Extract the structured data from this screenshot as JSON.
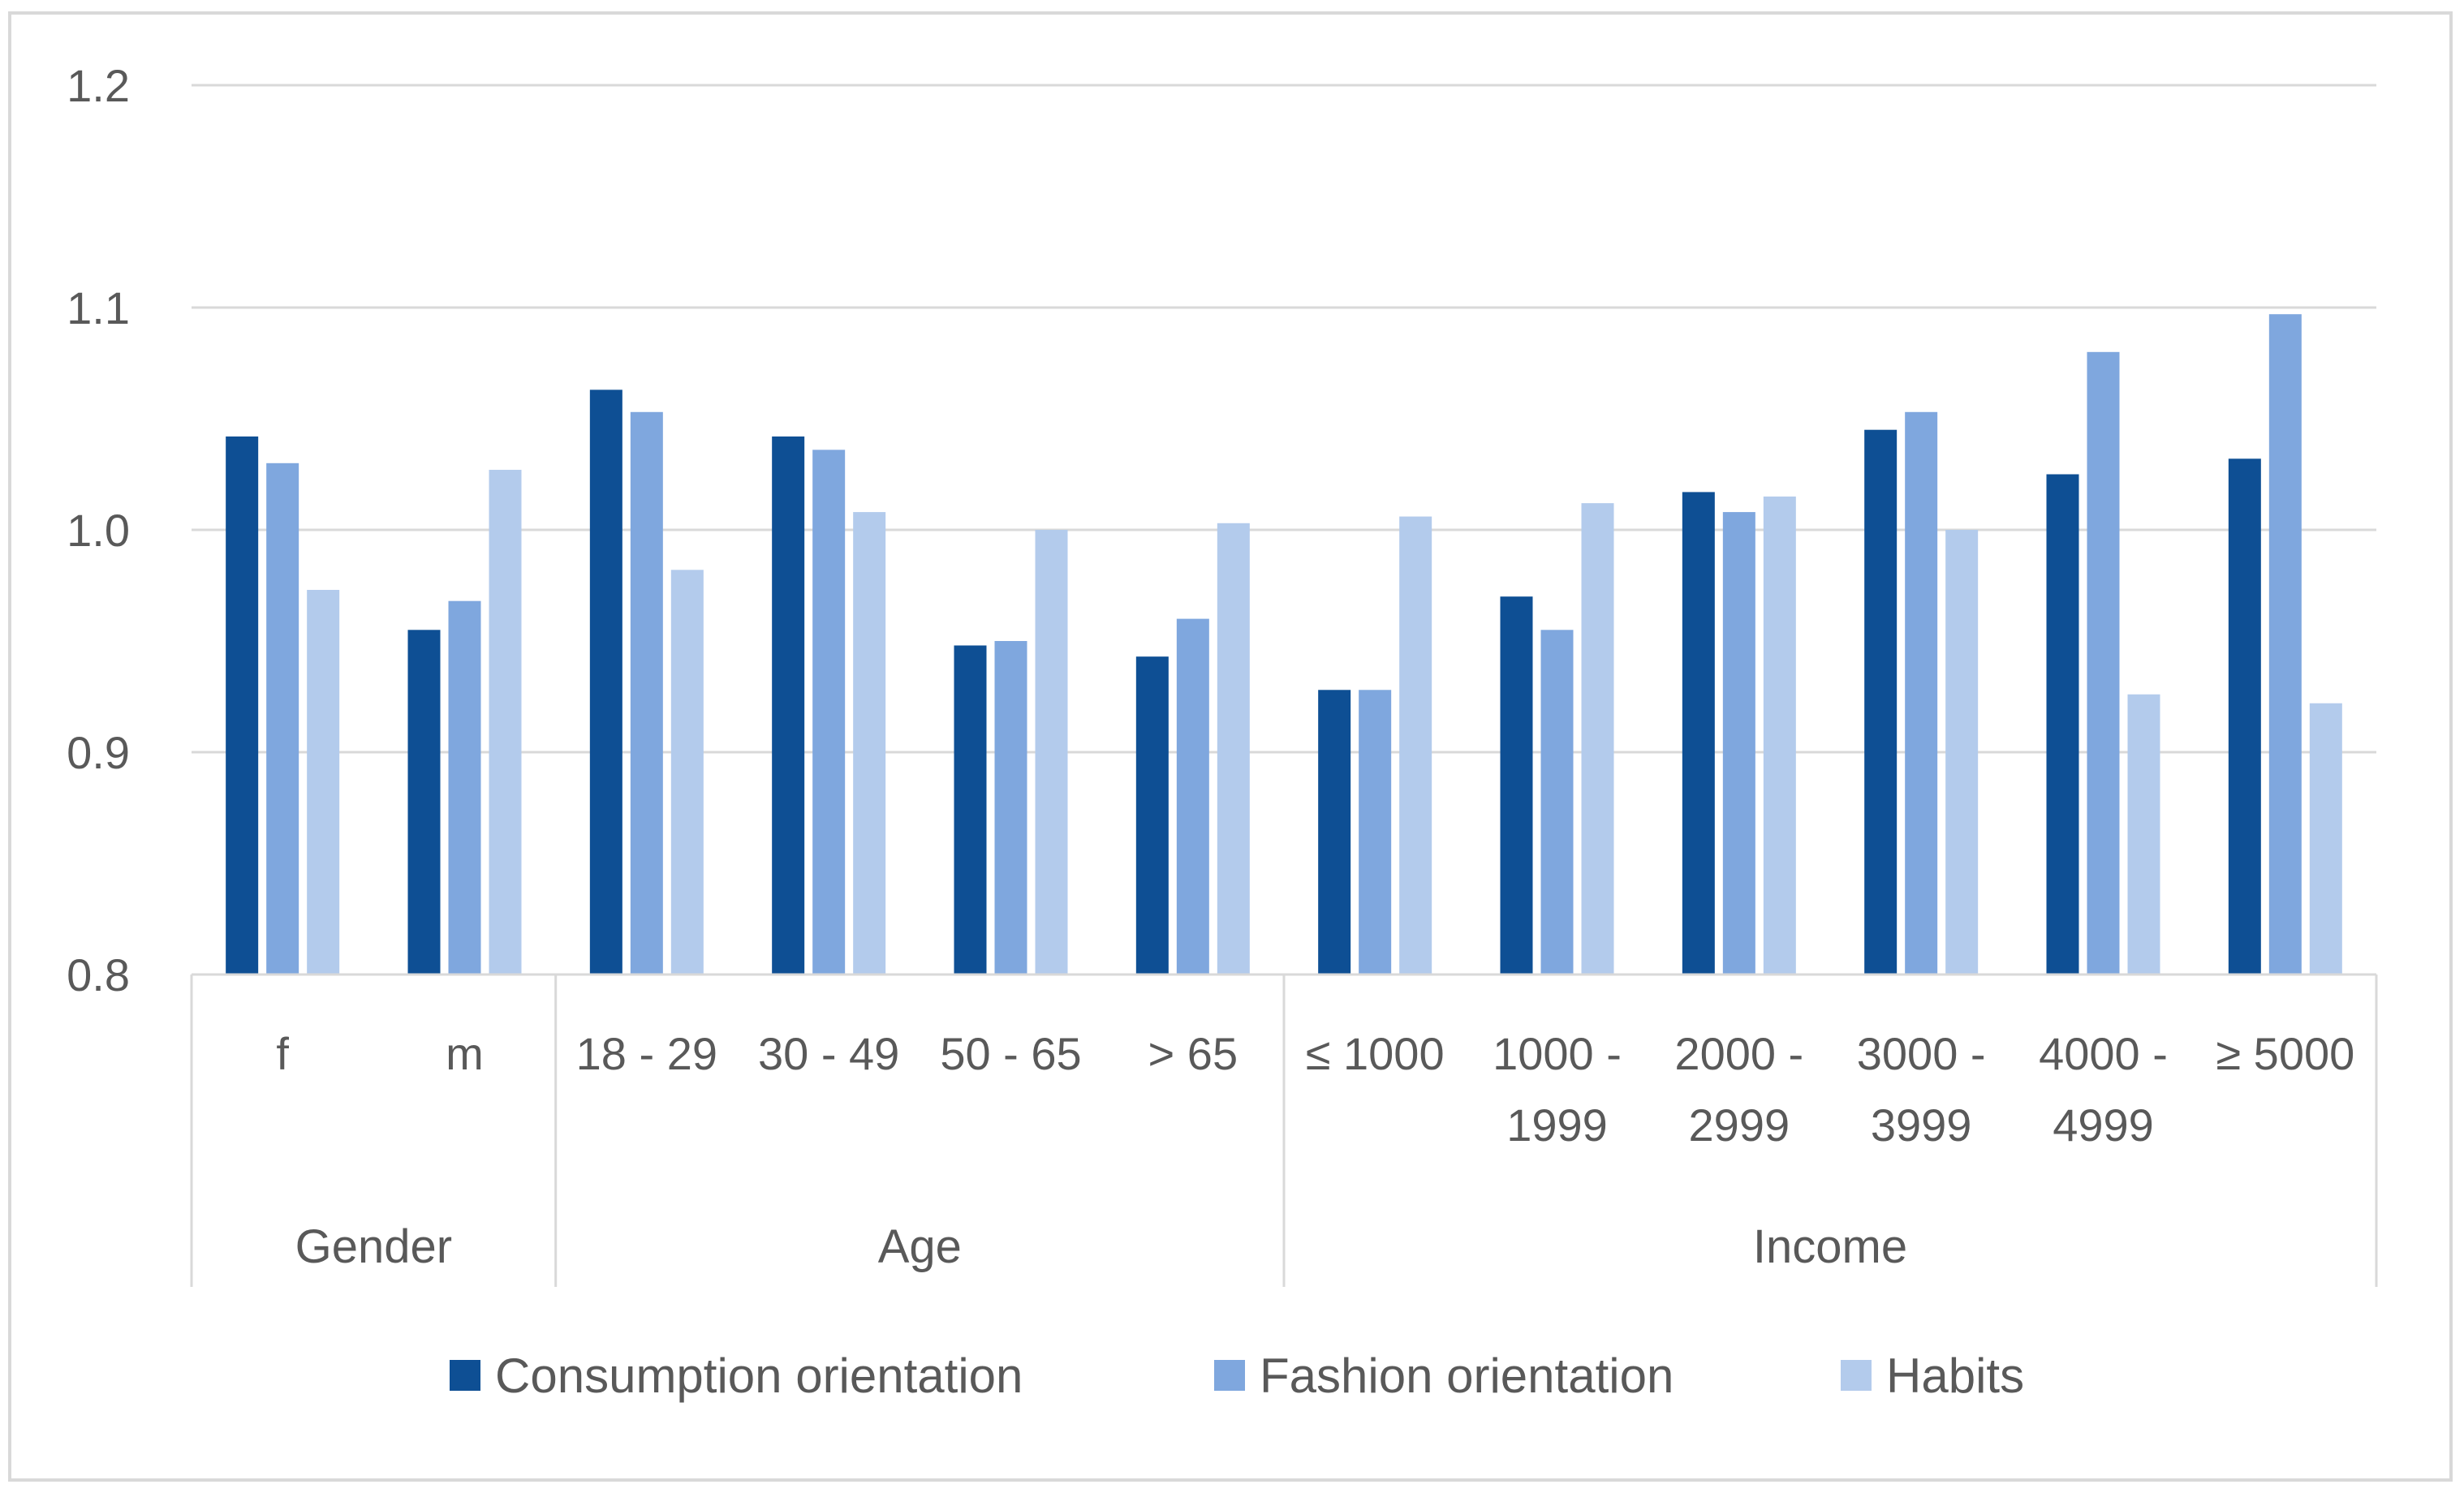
{
  "chart_data": {
    "type": "bar",
    "title": "",
    "xlabel": "",
    "ylabel": "",
    "ylim": [
      0.8,
      1.2
    ],
    "yticks": [
      "0.8",
      "0.9",
      "1.0",
      "1.1",
      "1.2"
    ],
    "grid": true,
    "legend_position": "bottom",
    "categories": [
      [
        "f"
      ],
      [
        "m"
      ],
      [
        "18 - 29"
      ],
      [
        "30 - 49"
      ],
      [
        "50 - 65"
      ],
      [
        "> 65"
      ],
      [
        "≤ 1000"
      ],
      [
        "1000 -",
        "1999"
      ],
      [
        "2000 -",
        "2999"
      ],
      [
        "3000 -",
        "3999"
      ],
      [
        "4000 -",
        "4999"
      ],
      [
        "≥ 5000"
      ]
    ],
    "groups": [
      {
        "name": "Gender",
        "count": 2
      },
      {
        "name": "Age",
        "count": 4
      },
      {
        "name": "Income",
        "count": 6
      }
    ],
    "series": [
      {
        "name": "Consumption orientation",
        "color": "#0e4f94",
        "values": [
          1.042,
          0.955,
          1.063,
          1.042,
          0.948,
          0.943,
          0.928,
          0.97,
          1.017,
          1.045,
          1.025,
          1.032
        ]
      },
      {
        "name": "Fashion orientation",
        "color": "#7fa7de",
        "values": [
          1.03,
          0.968,
          1.053,
          1.036,
          0.95,
          0.96,
          0.928,
          0.955,
          1.008,
          1.053,
          1.08,
          1.097
        ]
      },
      {
        "name": "Habits",
        "color": "#b3cbec",
        "values": [
          0.973,
          1.027,
          0.982,
          1.008,
          1.0,
          1.003,
          1.006,
          1.012,
          1.015,
          1.0,
          0.926,
          0.922
        ]
      }
    ]
  }
}
